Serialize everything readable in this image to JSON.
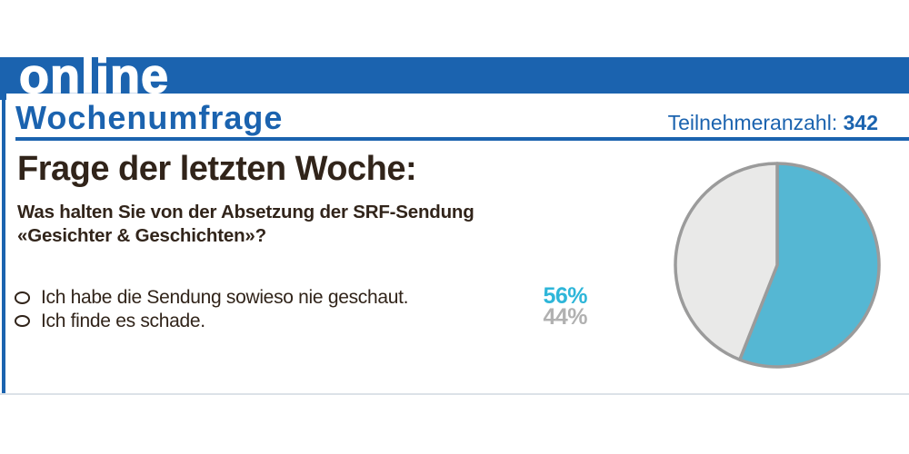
{
  "brand": {
    "logo_text": "online"
  },
  "masthead": {
    "title": "Wochenumfrage",
    "participants_label": "Teilnehmeranzahl:",
    "participants_value": "342"
  },
  "poll": {
    "heading": "Frage der letzten Woche:",
    "question_line1": "Was halten Sie von der Absetzung der SRF-Sendung",
    "question_line2": "«Gesichter & Geschichten»?",
    "options": [
      {
        "label": "Ich habe die Sendung sowieso nie geschaut.",
        "percent_label": "56%",
        "percent_color": "#2eb6d9"
      },
      {
        "label": "Ich finde es schade.",
        "percent_label": "44%",
        "percent_color": "#b1b1b1"
      }
    ]
  },
  "chart_data": {
    "type": "pie",
    "title": "Wochenumfrage",
    "question": "Was halten Sie von der Absetzung der SRF-Sendung «Gesichter & Geschichten»?",
    "categories": [
      "Ich habe die Sendung sowieso nie geschaut.",
      "Ich finde es schade."
    ],
    "values": [
      56,
      44
    ],
    "unit": "%",
    "participants": 342,
    "slice_colors": [
      "#55b7d3",
      "#e9e9e8"
    ],
    "start_angle_deg": 0,
    "direction": "clockwise",
    "legend_position": "none"
  },
  "colors": {
    "banner_blue": "#1b63af",
    "accent_cyan": "#2eb6d9",
    "muted_gray": "#b1b1b1",
    "text_dark": "#31241a",
    "pie_stroke": "#9b9b9b",
    "divider_light": "#dce2e8"
  }
}
